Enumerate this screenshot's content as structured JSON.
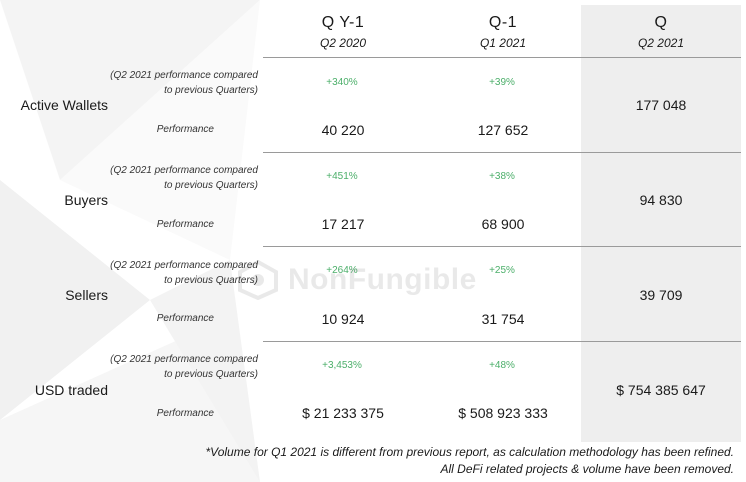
{
  "columns": [
    {
      "title": "Q Y-1",
      "subtitle": "Q2 2020"
    },
    {
      "title": "Q-1",
      "subtitle": "Q1 2021"
    },
    {
      "title": "Q",
      "subtitle": "Q2 2021"
    }
  ],
  "note_label": "(Q2 2021 performance compared to previous Quarters)",
  "note_line1": "(Q2 2021 performance compared",
  "note_line2": "to previous Quarters)",
  "performance_label": "Performance",
  "rows": [
    {
      "label": "Active Wallets",
      "pct_qy1": "+340%",
      "pct_q1": "+39%",
      "val_qy1": "40 220",
      "val_q1": "127 652",
      "val_q": "177 048"
    },
    {
      "label": "Buyers",
      "pct_qy1": "+451%",
      "pct_q1": "+38%",
      "val_qy1": "17 217",
      "val_q1": "68 900",
      "val_q": "94 830"
    },
    {
      "label": "Sellers",
      "pct_qy1": "+264%",
      "pct_q1": "+25%",
      "val_qy1": "10 924",
      "val_q1": "31 754",
      "val_q": "39 709"
    },
    {
      "label": "USD traded",
      "pct_qy1": "+3,453%",
      "pct_q1": "+48%",
      "val_qy1": "$ 21 233 375",
      "val_q1": "$ 508 923 333",
      "val_q": "$ 754 385 647"
    }
  ],
  "watermark": "NonFungible",
  "footnote_line1": "*Volume for Q1 2021 is different from previous report, as calculation methodology has been refined.",
  "footnote_line2": "All DeFi related projects & volume have been removed.",
  "colors": {
    "positive": "#4caf6a",
    "highlight": "#eeeeee",
    "divider": "#9a9a9a"
  }
}
